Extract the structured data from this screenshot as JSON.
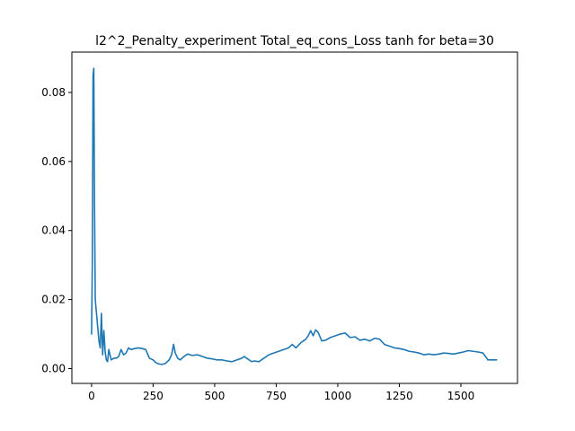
{
  "chart_data": {
    "type": "line",
    "title": "l2^2_Penalty_experiment Total_eq_cons_Loss tanh for beta=30",
    "xlabel": "",
    "ylabel": "",
    "xlim": [
      -80,
      1730
    ],
    "ylim": [
      -0.0043,
      0.0917
    ],
    "xticks": [
      0,
      250,
      500,
      750,
      1000,
      1250,
      1500
    ],
    "xtick_labels": [
      "0",
      "250",
      "500",
      "750",
      "1000",
      "1250",
      "1500"
    ],
    "yticks": [
      0.0,
      0.02,
      0.04,
      0.06,
      0.08
    ],
    "ytick_labels": [
      "0.00",
      "0.02",
      "0.04",
      "0.06",
      "0.08"
    ],
    "grid": false,
    "series": [
      {
        "color": "#1f77b4",
        "x": [
          0,
          3,
          6,
          9,
          12,
          15,
          20,
          25,
          30,
          35,
          40,
          45,
          50,
          55,
          60,
          65,
          70,
          80,
          90,
          100,
          110,
          120,
          130,
          140,
          150,
          160,
          175,
          190,
          205,
          220,
          235,
          250,
          260,
          270,
          285,
          300,
          315,
          325,
          333,
          340,
          350,
          360,
          375,
          390,
          410,
          430,
          450,
          470,
          490,
          510,
          530,
          550,
          570,
          590,
          610,
          620,
          630,
          640,
          650,
          660,
          680,
          700,
          720,
          740,
          760,
          780,
          800,
          815,
          830,
          850,
          870,
          880,
          890,
          900,
          910,
          920,
          935,
          950,
          970,
          990,
          1010,
          1030,
          1050,
          1070,
          1090,
          1110,
          1130,
          1150,
          1170,
          1190,
          1210,
          1230,
          1250,
          1270,
          1290,
          1310,
          1330,
          1350,
          1370,
          1390,
          1410,
          1430,
          1450,
          1470,
          1490,
          1510,
          1530,
          1550,
          1570,
          1590,
          1610,
          1630,
          1645
        ],
        "values": [
          0.01,
          0.03,
          0.085,
          0.087,
          0.048,
          0.02,
          0.016,
          0.012,
          0.008,
          0.006,
          0.016,
          0.004,
          0.011,
          0.005,
          0.0025,
          0.002,
          0.0055,
          0.0025,
          0.003,
          0.003,
          0.0035,
          0.0055,
          0.004,
          0.0045,
          0.006,
          0.0055,
          0.0058,
          0.006,
          0.0058,
          0.0055,
          0.003,
          0.0025,
          0.0018,
          0.0014,
          0.0012,
          0.0015,
          0.0025,
          0.004,
          0.007,
          0.0045,
          0.003,
          0.0025,
          0.0035,
          0.0042,
          0.0038,
          0.004,
          0.0035,
          0.003,
          0.0028,
          0.0025,
          0.0025,
          0.0022,
          0.002,
          0.0025,
          0.003,
          0.0035,
          0.003,
          0.0025,
          0.002,
          0.0022,
          0.002,
          0.003,
          0.004,
          0.0045,
          0.005,
          0.0055,
          0.006,
          0.007,
          0.006,
          0.0075,
          0.0085,
          0.0095,
          0.011,
          0.0095,
          0.0112,
          0.0105,
          0.008,
          0.0082,
          0.009,
          0.0095,
          0.01,
          0.0103,
          0.009,
          0.0092,
          0.0082,
          0.0085,
          0.008,
          0.0088,
          0.0085,
          0.007,
          0.0065,
          0.006,
          0.0058,
          0.0055,
          0.005,
          0.0048,
          0.0045,
          0.004,
          0.0042,
          0.004,
          0.0042,
          0.0045,
          0.0044,
          0.0042,
          0.0045,
          0.0048,
          0.0052,
          0.005,
          0.0048,
          0.0045,
          0.0025,
          0.0025,
          0.0025
        ]
      }
    ]
  }
}
